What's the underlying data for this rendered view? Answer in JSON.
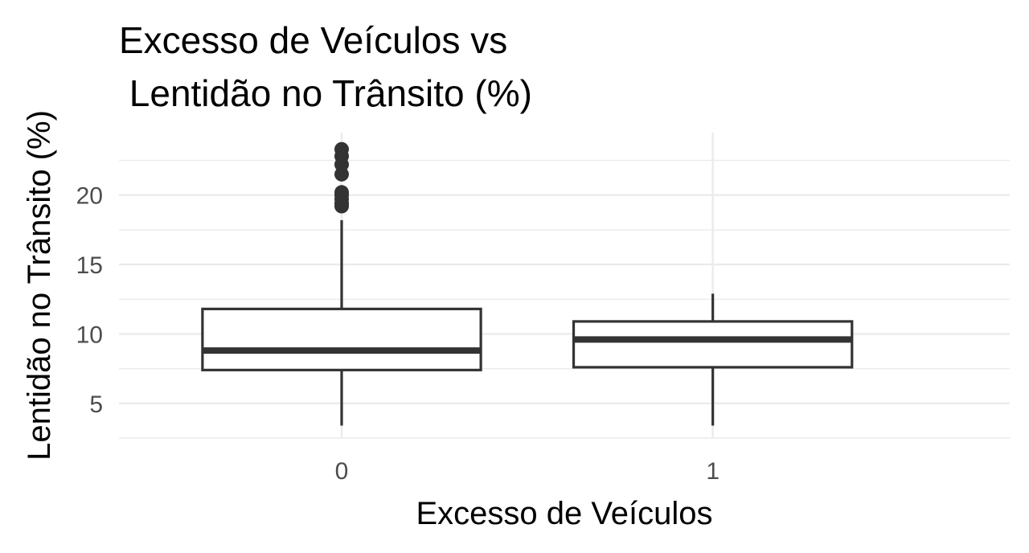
{
  "chart_data": {
    "type": "boxplot",
    "title_lines": [
      "Excesso de Veículos vs",
      " Lentidão no Trânsito (%)"
    ],
    "xlabel": "Excesso de Veículos",
    "ylabel": "Lentidão no Trânsito (%)",
    "categories": [
      "0",
      "1"
    ],
    "y_ticks": [
      5,
      10,
      15,
      20
    ],
    "ylim": [
      2.5,
      24.5
    ],
    "grid": true,
    "boxes": [
      {
        "category": "0",
        "whisker_low": 3.4,
        "q1": 7.4,
        "median": 8.8,
        "q3": 11.8,
        "whisker_high": 18.2,
        "outliers": [
          19.2,
          19.4,
          19.7,
          20.0,
          20.2,
          21.5,
          22.2,
          22.8,
          23.3
        ]
      },
      {
        "category": "1",
        "whisker_low": 3.4,
        "q1": 7.6,
        "median": 9.6,
        "q3": 10.9,
        "whisker_high": 12.9,
        "outliers": []
      }
    ]
  }
}
